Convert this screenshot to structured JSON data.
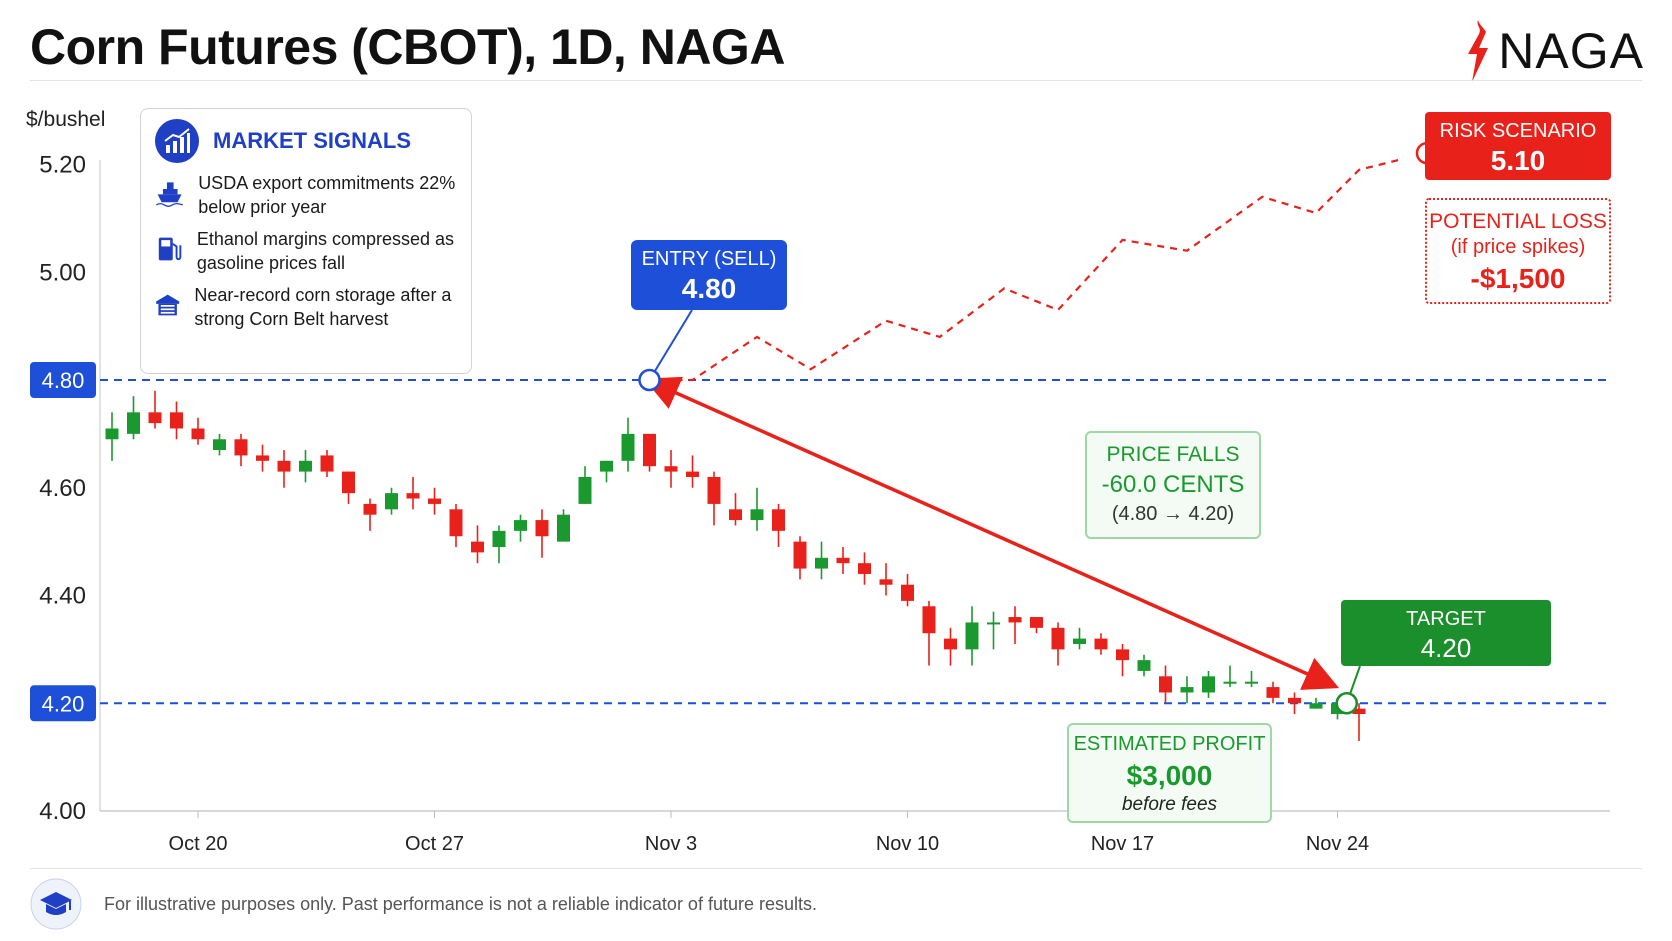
{
  "title": "Corn Futures (CBOT), 1D, NAGA",
  "logo_text": "NAGA",
  "y_unit": "$/bushel",
  "colors": {
    "up": "#1a9a2e",
    "down": "#e8221b",
    "level": "#1d4fd8",
    "risk": "#e8221b"
  },
  "signals": {
    "title": "MARKET SIGNALS",
    "items": [
      {
        "icon": "ship-icon",
        "text": "USDA export commitments 22% below prior year"
      },
      {
        "icon": "fuel-pump-icon",
        "text": "Ethanol margins compressed as gasoline prices fall"
      },
      {
        "icon": "warehouse-icon",
        "text": "Near-record corn storage after a strong Corn Belt harvest"
      }
    ]
  },
  "entry": {
    "label": "ENTRY (SELL)",
    "value": "4.80"
  },
  "target": {
    "label": "TARGET",
    "value": "4.20"
  },
  "risk": {
    "label": "RISK SCENARIO",
    "value": "5.10"
  },
  "loss": {
    "line1": "POTENTIAL LOSS",
    "line2": "(if price spikes)",
    "value": "-$1,500"
  },
  "price_falls": {
    "line1": "PRICE FALLS",
    "line2": "-60.0 CENTS",
    "line3": "(4.80 → 4.20)"
  },
  "profit": {
    "line1": "ESTIMATED PROFIT",
    "line2": "$3,000",
    "line3": "before fees"
  },
  "footer": "For illustrative purposes only. Past performance is not a reliable indicator of future results.",
  "chart_data": {
    "type": "candlestick",
    "ylim": [
      4.0,
      5.25
    ],
    "yticks": [
      "4.00",
      "4.40",
      "4.60",
      "5.00",
      "5.20"
    ],
    "level_labels": [
      "4.80",
      "4.20"
    ],
    "levels": [
      4.8,
      4.2
    ],
    "xtick_labels": [
      "Oct 20",
      "Oct 27",
      "Nov 3",
      "Nov 10",
      "Nov 17",
      "Nov 24"
    ],
    "xtick_index": [
      4,
      15,
      26,
      37,
      47,
      57
    ],
    "entry_index": 25,
    "target_index": 56.5,
    "candles": [
      {
        "o": 4.69,
        "h": 4.74,
        "l": 4.65,
        "c": 4.71
      },
      {
        "o": 4.7,
        "h": 4.77,
        "l": 4.69,
        "c": 4.74
      },
      {
        "o": 4.74,
        "h": 4.78,
        "l": 4.71,
        "c": 4.72
      },
      {
        "o": 4.74,
        "h": 4.76,
        "l": 4.69,
        "c": 4.71
      },
      {
        "o": 4.71,
        "h": 4.73,
        "l": 4.68,
        "c": 4.69
      },
      {
        "o": 4.67,
        "h": 4.7,
        "l": 4.66,
        "c": 4.69
      },
      {
        "o": 4.69,
        "h": 4.7,
        "l": 4.64,
        "c": 4.66
      },
      {
        "o": 4.66,
        "h": 4.68,
        "l": 4.63,
        "c": 4.65
      },
      {
        "o": 4.65,
        "h": 4.67,
        "l": 4.6,
        "c": 4.63
      },
      {
        "o": 4.63,
        "h": 4.67,
        "l": 4.61,
        "c": 4.65
      },
      {
        "o": 4.66,
        "h": 4.67,
        "l": 4.62,
        "c": 4.63
      },
      {
        "o": 4.63,
        "h": 4.63,
        "l": 4.57,
        "c": 4.59
      },
      {
        "o": 4.57,
        "h": 4.58,
        "l": 4.52,
        "c": 4.55
      },
      {
        "o": 4.56,
        "h": 4.6,
        "l": 4.55,
        "c": 4.59
      },
      {
        "o": 4.59,
        "h": 4.62,
        "l": 4.56,
        "c": 4.58
      },
      {
        "o": 4.58,
        "h": 4.6,
        "l": 4.55,
        "c": 4.57
      },
      {
        "o": 4.56,
        "h": 4.57,
        "l": 4.49,
        "c": 4.51
      },
      {
        "o": 4.5,
        "h": 4.53,
        "l": 4.46,
        "c": 4.48
      },
      {
        "o": 4.49,
        "h": 4.53,
        "l": 4.46,
        "c": 4.52
      },
      {
        "o": 4.52,
        "h": 4.55,
        "l": 4.5,
        "c": 4.54
      },
      {
        "o": 4.54,
        "h": 4.56,
        "l": 4.47,
        "c": 4.51
      },
      {
        "o": 4.5,
        "h": 4.56,
        "l": 4.5,
        "c": 4.55
      },
      {
        "o": 4.57,
        "h": 4.64,
        "l": 4.57,
        "c": 4.62
      },
      {
        "o": 4.63,
        "h": 4.65,
        "l": 4.61,
        "c": 4.65
      },
      {
        "o": 4.65,
        "h": 4.73,
        "l": 4.63,
        "c": 4.7
      },
      {
        "o": 4.7,
        "h": 4.7,
        "l": 4.63,
        "c": 4.64
      },
      {
        "o": 4.64,
        "h": 4.67,
        "l": 4.6,
        "c": 4.63
      },
      {
        "o": 4.63,
        "h": 4.66,
        "l": 4.6,
        "c": 4.62
      },
      {
        "o": 4.62,
        "h": 4.63,
        "l": 4.53,
        "c": 4.57
      },
      {
        "o": 4.56,
        "h": 4.59,
        "l": 4.53,
        "c": 4.54
      },
      {
        "o": 4.54,
        "h": 4.6,
        "l": 4.52,
        "c": 4.56
      },
      {
        "o": 4.56,
        "h": 4.57,
        "l": 4.49,
        "c": 4.52
      },
      {
        "o": 4.5,
        "h": 4.51,
        "l": 4.43,
        "c": 4.45
      },
      {
        "o": 4.45,
        "h": 4.5,
        "l": 4.43,
        "c": 4.47
      },
      {
        "o": 4.47,
        "h": 4.49,
        "l": 4.44,
        "c": 4.46
      },
      {
        "o": 4.46,
        "h": 4.48,
        "l": 4.42,
        "c": 4.44
      },
      {
        "o": 4.43,
        "h": 4.46,
        "l": 4.4,
        "c": 4.42
      },
      {
        "o": 4.42,
        "h": 4.44,
        "l": 4.38,
        "c": 4.39
      },
      {
        "o": 4.38,
        "h": 4.39,
        "l": 4.27,
        "c": 4.33
      },
      {
        "o": 4.32,
        "h": 4.34,
        "l": 4.27,
        "c": 4.3
      },
      {
        "o": 4.3,
        "h": 4.38,
        "l": 4.27,
        "c": 4.35
      },
      {
        "o": 4.35,
        "h": 4.37,
        "l": 4.3,
        "c": 4.35
      },
      {
        "o": 4.36,
        "h": 4.38,
        "l": 4.31,
        "c": 4.35
      },
      {
        "o": 4.36,
        "h": 4.36,
        "l": 4.33,
        "c": 4.34
      },
      {
        "o": 4.34,
        "h": 4.35,
        "l": 4.27,
        "c": 4.3
      },
      {
        "o": 4.31,
        "h": 4.34,
        "l": 4.3,
        "c": 4.32
      },
      {
        "o": 4.32,
        "h": 4.33,
        "l": 4.29,
        "c": 4.3
      },
      {
        "o": 4.3,
        "h": 4.31,
        "l": 4.25,
        "c": 4.28
      },
      {
        "o": 4.26,
        "h": 4.29,
        "l": 4.25,
        "c": 4.28
      },
      {
        "o": 4.25,
        "h": 4.27,
        "l": 4.2,
        "c": 4.22
      },
      {
        "o": 4.22,
        "h": 4.25,
        "l": 4.2,
        "c": 4.23
      },
      {
        "o": 4.22,
        "h": 4.26,
        "l": 4.21,
        "c": 4.25
      },
      {
        "o": 4.24,
        "h": 4.27,
        "l": 4.23,
        "c": 4.24
      },
      {
        "o": 4.24,
        "h": 4.26,
        "l": 4.23,
        "c": 4.24
      },
      {
        "o": 4.23,
        "h": 4.24,
        "l": 4.2,
        "c": 4.21
      },
      {
        "o": 4.21,
        "h": 4.22,
        "l": 4.18,
        "c": 4.2
      },
      {
        "o": 4.19,
        "h": 4.21,
        "l": 4.19,
        "c": 4.2
      },
      {
        "o": 4.18,
        "h": 4.21,
        "l": 4.17,
        "c": 4.2
      },
      {
        "o": 4.19,
        "h": 4.2,
        "l": 4.13,
        "c": 4.18
      }
    ],
    "risk_path": [
      {
        "i": 25,
        "v": 4.8
      },
      {
        "i": 27,
        "v": 4.8
      },
      {
        "i": 30,
        "v": 4.88
      },
      {
        "i": 32.5,
        "v": 4.82
      },
      {
        "i": 36,
        "v": 4.91
      },
      {
        "i": 38.5,
        "v": 4.88
      },
      {
        "i": 41.5,
        "v": 4.97
      },
      {
        "i": 44,
        "v": 4.93
      },
      {
        "i": 47,
        "v": 5.06
      },
      {
        "i": 50,
        "v": 5.04
      },
      {
        "i": 53.5,
        "v": 5.14
      },
      {
        "i": 56,
        "v": 5.11
      },
      {
        "i": 58,
        "v": 5.19
      },
      {
        "i": 60,
        "v": 5.21
      }
    ]
  }
}
